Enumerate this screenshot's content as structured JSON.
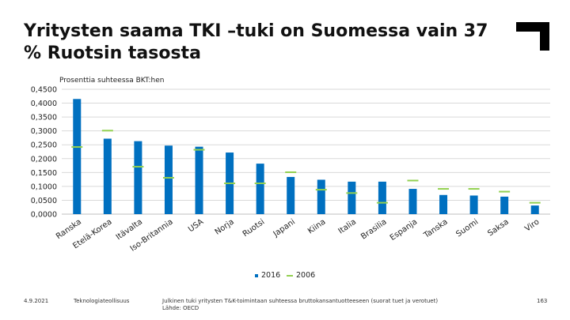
{
  "slide": {
    "title": "Yritysten saama TKI –tuki on Suomessa vain 37 % Ruotsin tasosta",
    "date": "4.9.2021",
    "organization": "Teknologiateollisuus",
    "note": "Julkinen tuki yritysten T&K-toimintaan suhteessa bruttokansantuotteeseen (suorat tuet ja verotuet)",
    "source": "Lähde: OECD",
    "page_number": "163"
  },
  "chart_data": {
    "type": "bar",
    "title": "",
    "ylabel": "Prosenttia suhteessa BKT:hen",
    "xlabel": "",
    "ylim": [
      0,
      0.45
    ],
    "yticks": [
      "0,0000",
      "0,0500",
      "0,1000",
      "0,1500",
      "0,2000",
      "0,2500",
      "0,3000",
      "0,3500",
      "0,4000",
      "0,4500"
    ],
    "categories": [
      "Ranska",
      "Etelä-Korea",
      "Itävalta",
      "Iso-Britannia",
      "USA",
      "Norja",
      "Ruotsi",
      "Japani",
      "Kiina",
      "Italia",
      "Brasilia",
      "Espanja",
      "Tanska",
      "Suomi",
      "Saksa",
      "Viro"
    ],
    "series": [
      {
        "name": "2016",
        "color": "#0070c0",
        "kind": "bar",
        "values": [
          0.415,
          0.272,
          0.263,
          0.247,
          0.243,
          0.222,
          0.182,
          0.134,
          0.124,
          0.117,
          0.117,
          0.091,
          0.069,
          0.067,
          0.063,
          0.031
        ]
      },
      {
        "name": "2006",
        "color": "#92d050",
        "kind": "marker",
        "values": [
          0.242,
          0.301,
          0.171,
          0.131,
          0.232,
          0.111,
          0.111,
          0.151,
          0.088,
          0.076,
          0.041,
          0.121,
          0.091,
          0.091,
          0.081,
          0.041
        ]
      }
    ],
    "legend_position": "bottom"
  },
  "colors": {
    "bar": "#0070c0",
    "marker": "#92d050",
    "gridline": "#d9d9d9",
    "logo": "#000000"
  },
  "logo_icon": "corner-bracket-logo"
}
